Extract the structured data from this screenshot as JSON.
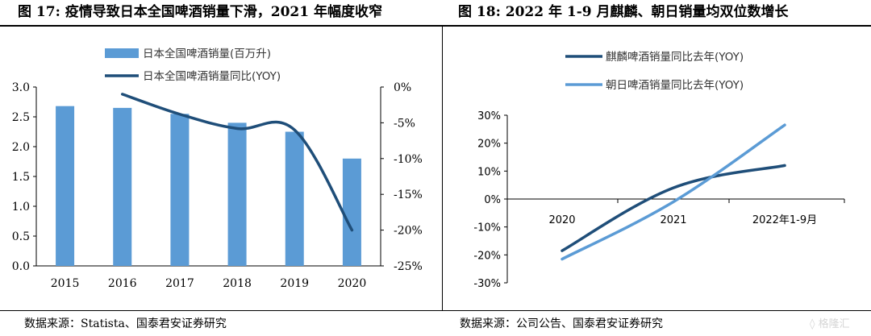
{
  "left_title": "图 17: 疫情导致日本全国啤酒销量下滑，2021 年幅度收窄",
  "right_title": "图 18: 2022 年 1-9 月麒麟、朝日销量均双位数增长",
  "left_source": "数据来源：Statista、国泰君安证券研究",
  "right_source": "数据来源：公司公告、国泰君安证券研究",
  "watermark_text": "格隆汇",
  "colors": {
    "bar": "#5b9bd5",
    "line_dark": "#1f4e79",
    "line_light": "#5b9bd5"
  },
  "chart_data": [
    {
      "type": "bar",
      "categories": [
        "2015",
        "2016",
        "2017",
        "2018",
        "2019",
        "2020"
      ],
      "series": [
        {
          "name": "日本全国啤酒销量(百万升)",
          "type": "bar",
          "axis": "left",
          "values": [
            2.68,
            2.65,
            2.55,
            2.4,
            2.25,
            1.8
          ]
        },
        {
          "name": "日本全国啤酒销量同比(YOY)",
          "type": "line",
          "axis": "right",
          "values": [
            null,
            -1.0,
            -3.8,
            -5.8,
            -6.0,
            -20.0
          ]
        }
      ],
      "y_left": {
        "min": 0,
        "max": 3.0,
        "ticks": [
          "0.0",
          "0.5",
          "1.0",
          "1.5",
          "2.0",
          "2.5",
          "3.0"
        ]
      },
      "y_right": {
        "min": -25,
        "max": 0,
        "ticks": [
          "-25%",
          "-20%",
          "-15%",
          "-10%",
          "-5%",
          "0%"
        ]
      },
      "legend_position": "top-center",
      "grid": false
    },
    {
      "type": "line",
      "categories": [
        "2020",
        "2021",
        "2022年1-9月"
      ],
      "series": [
        {
          "name": "麒麟啤酒销量同比去年(YOY)",
          "values": [
            -18.5,
            4.0,
            12.0
          ]
        },
        {
          "name": "朝日啤酒销量同比去年(YOY)",
          "values": [
            -21.5,
            -1.0,
            26.5
          ]
        }
      ],
      "y": {
        "min": -30,
        "max": 30,
        "ticks": [
          "-30%",
          "-20%",
          "-10%",
          "0%",
          "10%",
          "20%",
          "30%"
        ]
      },
      "legend_position": "top-left",
      "grid": false
    }
  ]
}
